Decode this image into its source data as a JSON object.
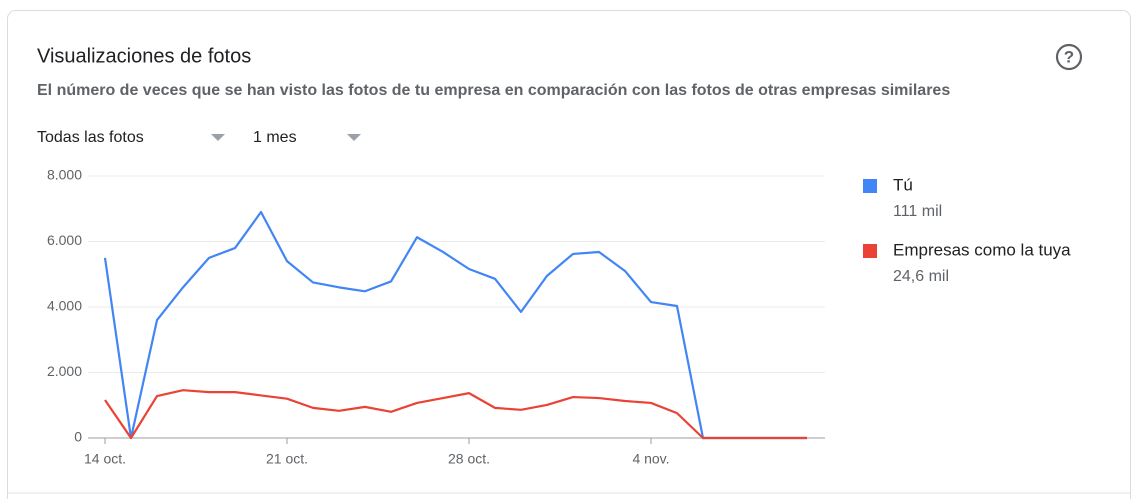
{
  "filters": [
    "Todas las fotos",
    "1 mes"
  ],
  "chart_data": {
    "type": "line",
    "title": "Visualizaciones de fotos",
    "subtitle": "El número de veces que se han visto las fotos de tu empresa en comparación con las fotos de otras empresas similares",
    "categories": [
      "14 oct.",
      null,
      null,
      null,
      null,
      null,
      null,
      "21 oct.",
      null,
      null,
      null,
      null,
      null,
      null,
      "28 oct.",
      null,
      null,
      null,
      null,
      null,
      null,
      "4 nov.",
      null,
      null,
      null,
      null,
      null,
      null
    ],
    "series": [
      {
        "name": "Tú",
        "summary": "111 mil",
        "color": "#4285f4",
        "values": [
          5500,
          0,
          3600,
          4600,
          5500,
          5800,
          6900,
          5400,
          4750,
          4600,
          4480,
          4780,
          6130,
          5680,
          5160,
          4860,
          3850,
          4950,
          5620,
          5680,
          5100,
          4150,
          4030,
          0,
          0,
          0,
          0,
          0
        ]
      },
      {
        "name": "Empresas como la tuya",
        "summary": "24,6 mil",
        "color": "#ea4335",
        "values": [
          1160,
          0,
          1280,
          1460,
          1400,
          1400,
          1300,
          1200,
          920,
          830,
          950,
          800,
          1070,
          1220,
          1370,
          920,
          860,
          1010,
          1250,
          1220,
          1130,
          1070,
          760,
          0,
          0,
          0,
          0,
          0
        ]
      }
    ],
    "ylim": [
      0,
      8000
    ],
    "yticks": [
      0,
      {
        "value": 2000,
        "label": "2.000"
      },
      {
        "value": 4000,
        "label": "4.000"
      },
      {
        "value": 6000,
        "label": "6.000"
      },
      {
        "value": 8000,
        "label": "8.000"
      }
    ],
    "grid": true
  }
}
